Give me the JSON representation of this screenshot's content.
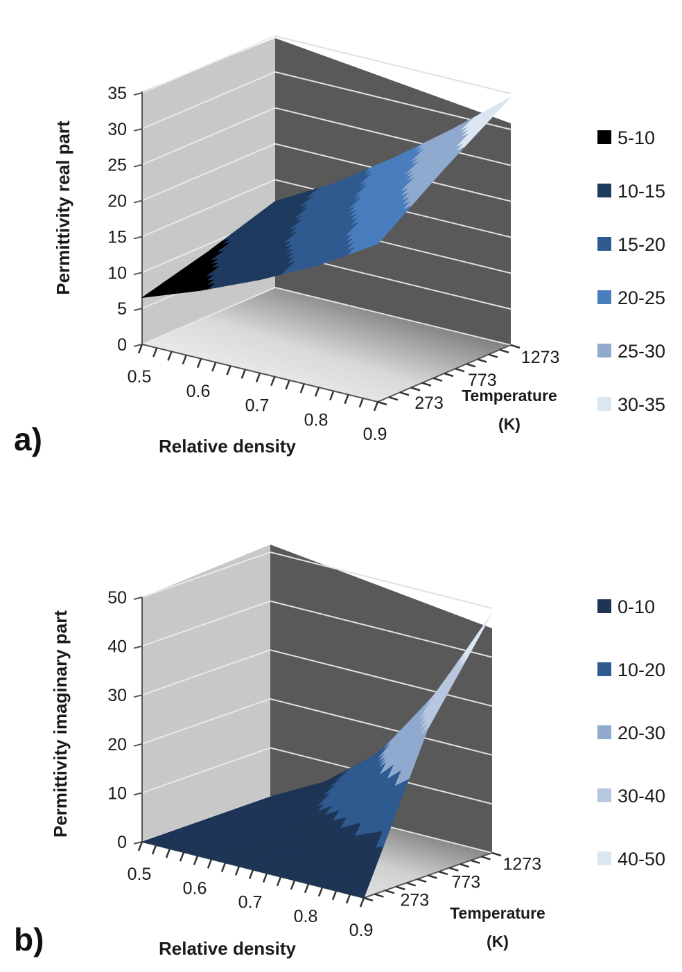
{
  "chart_data": [
    {
      "type": "surface",
      "panel_label": "a)",
      "xlabel": "Relative density",
      "ylabel": "Permittivity real part",
      "zlabel": "Temperature",
      "zlabel_unit": "(K)",
      "x_ticks": [
        "0.5",
        "0.6",
        "0.7",
        "0.8",
        "0.9"
      ],
      "y_ticks": [
        "0",
        "5",
        "10",
        "15",
        "20",
        "25",
        "30",
        "35"
      ],
      "z_ticks": [
        "273",
        "773",
        "1273"
      ],
      "ylim": [
        0,
        35
      ],
      "x": [
        0.5,
        0.6,
        0.7,
        0.8,
        0.9
      ],
      "temperature": [
        273,
        773,
        1273
      ],
      "values": [
        [
          6.5,
          9.5,
          13.0,
          17.0,
          22.0
        ],
        [
          9.0,
          13.0,
          17.5,
          23.0,
          28.5
        ],
        [
          12.0,
          16.5,
          22.0,
          28.0,
          34.5
        ]
      ],
      "legend": [
        {
          "label": "5-10",
          "color": "#000000"
        },
        {
          "label": "10-15",
          "color": "#1f3a5f"
        },
        {
          "label": "15-20",
          "color": "#2f5a8f"
        },
        {
          "label": "20-25",
          "color": "#4a7dbd"
        },
        {
          "label": "25-30",
          "color": "#8fa9cf"
        },
        {
          "label": "30-35",
          "color": "#dce6f3"
        }
      ],
      "legend_position": "right",
      "gridlines": true
    },
    {
      "type": "surface",
      "panel_label": "b)",
      "xlabel": "Relative density",
      "ylabel": "Permittivity imaginary part",
      "zlabel": "Temperature",
      "zlabel_unit": "(K)",
      "x_ticks": [
        "0.5",
        "0.6",
        "0.7",
        "0.8",
        "0.9"
      ],
      "y_ticks": [
        "0",
        "10",
        "20",
        "30",
        "40",
        "50"
      ],
      "z_ticks": [
        "273",
        "773",
        "1273"
      ],
      "ylim": [
        0,
        50
      ],
      "x": [
        0.5,
        0.6,
        0.7,
        0.8,
        0.9
      ],
      "temperature": [
        273,
        773,
        1273
      ],
      "values": [
        [
          0.0,
          0.0,
          0.0,
          0.0,
          0.0
        ],
        [
          0.0,
          3.0,
          9.0,
          18.0,
          30.0
        ],
        [
          0.0,
          6.0,
          15.0,
          30.0,
          49.0
        ]
      ],
      "legend": [
        {
          "label": "0-10",
          "color": "#1e3556"
        },
        {
          "label": "10-20",
          "color": "#2f5a8f"
        },
        {
          "label": "20-30",
          "color": "#8fa9cf"
        },
        {
          "label": "30-40",
          "color": "#b7c7df"
        },
        {
          "label": "40-50",
          "color": "#dce6f3"
        }
      ],
      "legend_position": "right",
      "gridlines": true
    }
  ]
}
